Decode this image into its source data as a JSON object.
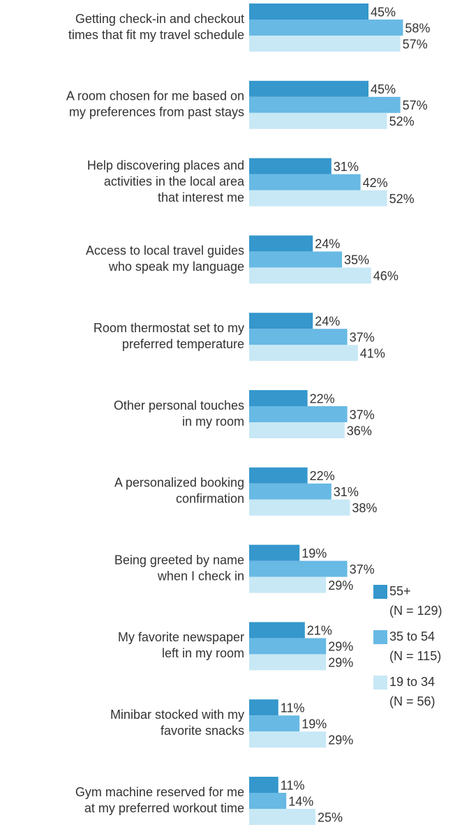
{
  "chart_data": {
    "type": "hbar",
    "categories": [
      [
        "Getting check-in and checkout",
        "times that fit my travel schedule"
      ],
      [
        "A room chosen for me based on",
        "my preferences from past stays"
      ],
      [
        "Help discovering places and",
        "activities in the local area",
        "that interest me"
      ],
      [
        "Access to local travel guides",
        "who speak my language"
      ],
      [
        "Room thermostat set to my",
        "preferred temperature"
      ],
      [
        "Other personal touches",
        "in my room"
      ],
      [
        "A personalized booking",
        "confirmation"
      ],
      [
        "Being greeted by name",
        "when I check in"
      ],
      [
        "My favorite newspaper",
        "left in my room"
      ],
      [
        "Minibar stocked with my",
        "favorite snacks"
      ],
      [
        "Gym machine reserved for me",
        "at my preferred workout time"
      ]
    ],
    "series": [
      {
        "name": "55+",
        "n_label": "(N = 129)",
        "color": "#3597cc",
        "values": [
          45,
          45,
          31,
          24,
          24,
          22,
          22,
          19,
          21,
          11,
          11
        ],
        "value_labels": [
          "45%",
          "45%",
          "31%",
          "24%",
          "24%",
          "22%",
          "22%",
          "19%",
          "21%",
          "11%",
          "11%"
        ]
      },
      {
        "name": "35 to 54",
        "n_label": "(N = 115)",
        "color": "#68b9e4",
        "values": [
          58,
          57,
          42,
          35,
          37,
          37,
          31,
          37,
          29,
          19,
          14
        ],
        "value_labels": [
          "58%",
          "57%",
          "42%",
          "35%",
          "37%",
          "37%",
          "31%",
          "37%",
          "29%",
          "19%",
          "14%"
        ]
      },
      {
        "name": "19 to 34",
        "n_label": "(N = 56)",
        "color": "#c8e8f5",
        "values": [
          57,
          52,
          52,
          46,
          41,
          36,
          38,
          29,
          29,
          29,
          25
        ],
        "value_labels": [
          "57%",
          "52%",
          "52%",
          "46%",
          "41%",
          "36%",
          "38%",
          "29%",
          "29%",
          "29%",
          "25%"
        ]
      }
    ],
    "xlim": [
      0,
      82
    ]
  }
}
